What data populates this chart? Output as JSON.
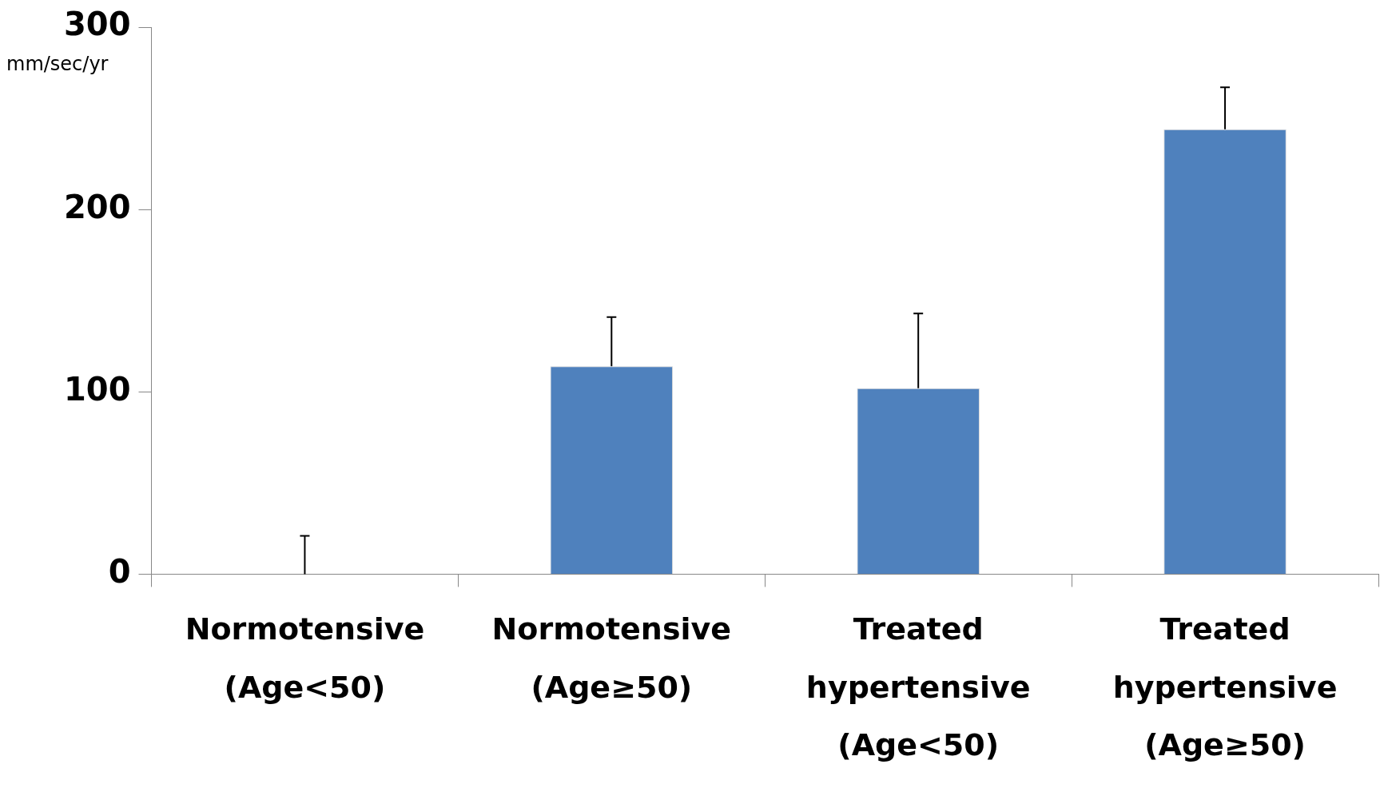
{
  "chart_data": {
    "type": "bar",
    "ylabel": "mm/sec/yr",
    "categories": [
      "Normotensive\n(Age<50)",
      "Normotensive\n(Age≥50)",
      "Treated\nhypertensive\n(Age<50)",
      "Treated\nhypertensive\n(Age≥50)"
    ],
    "values": [
      0,
      114,
      102,
      244
    ],
    "color": "#4f81bd",
    "errors": [
      [
        0,
        21
      ],
      [
        114,
        141
      ],
      [
        102,
        143
      ],
      [
        244,
        267
      ]
    ],
    "ylim": [
      0,
      300
    ],
    "yticks": [
      0,
      100,
      200,
      300
    ],
    "grid": false
  }
}
